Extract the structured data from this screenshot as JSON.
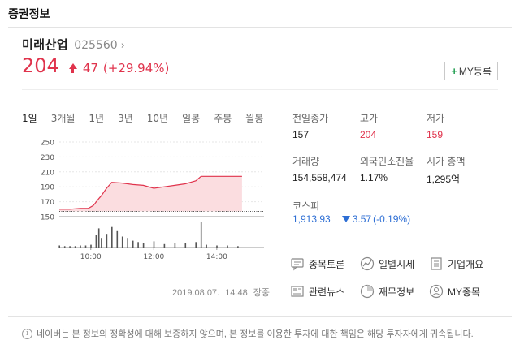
{
  "section_title": "증권정보",
  "stock": {
    "name": "미래산업",
    "code": "025560",
    "price": "204",
    "change": "47",
    "change_rate": "(+29.94%)",
    "my_button_label": "MY등록",
    "colors": {
      "up": "#e0334c",
      "down": "#2d6ed4"
    }
  },
  "tabs": [
    {
      "label": "1일",
      "active": true
    },
    {
      "label": "3개월",
      "active": false
    },
    {
      "label": "1년",
      "active": false
    },
    {
      "label": "3년",
      "active": false
    },
    {
      "label": "10년",
      "active": false
    },
    {
      "label": "일봉",
      "active": false
    },
    {
      "label": "주봉",
      "active": false
    },
    {
      "label": "월봉",
      "active": false
    }
  ],
  "chart_data": {
    "type": "line",
    "title": "",
    "xlabel": "",
    "ylabel": "",
    "ylim": [
      150,
      250
    ],
    "y_ticks": [
      250,
      230,
      210,
      190,
      170,
      150
    ],
    "x_ticks": [
      "10:00",
      "12:00",
      "14:00"
    ],
    "x_range": [
      "09:00",
      "15:30"
    ],
    "reference_price": 157,
    "series": [
      {
        "time": [
          "09:00",
          "09:20",
          "09:40",
          "09:55",
          "10:05",
          "10:15",
          "10:20",
          "10:30",
          "10:40",
          "11:00",
          "11:20",
          "11:40",
          "12:00",
          "12:20",
          "12:40",
          "13:00",
          "13:10",
          "13:20",
          "13:30",
          "13:40",
          "14:00",
          "14:20",
          "14:48"
        ],
        "values": [
          160,
          160,
          161,
          161,
          165,
          174,
          178,
          188,
          196,
          195,
          193,
          192,
          188,
          190,
          192,
          194,
          196,
          198,
          204,
          204,
          204,
          204,
          204
        ]
      }
    ],
    "volume": {
      "time": [
        "09:00",
        "09:10",
        "09:20",
        "09:30",
        "09:40",
        "09:50",
        "10:00",
        "10:10",
        "10:15",
        "10:20",
        "10:30",
        "10:40",
        "10:50",
        "11:00",
        "11:10",
        "11:20",
        "11:30",
        "11:40",
        "12:00",
        "12:20",
        "12:40",
        "13:00",
        "13:20",
        "13:30",
        "13:40",
        "14:00",
        "14:20",
        "14:40"
      ],
      "values": [
        3,
        2,
        2,
        2,
        3,
        3,
        4,
        18,
        28,
        14,
        20,
        30,
        24,
        16,
        14,
        10,
        8,
        6,
        9,
        5,
        7,
        6,
        8,
        38,
        4,
        3,
        3,
        2
      ]
    },
    "grid": true,
    "legend": "none"
  },
  "timestamp": {
    "date": "2019.08.07.",
    "time": "14:48",
    "status": "장중"
  },
  "info": {
    "prev_close": {
      "label": "전일종가",
      "value": "157"
    },
    "high": {
      "label": "고가",
      "value": "204"
    },
    "low": {
      "label": "저가",
      "value": "159"
    },
    "volume": {
      "label": "거래량",
      "value": "154,558,474"
    },
    "foreign_ratio": {
      "label": "외국인소진율",
      "value": "1.17%"
    },
    "market_cap": {
      "label": "시가 총액",
      "value": "1,295억"
    }
  },
  "kospi": {
    "label": "코스피",
    "value": "1,913.93",
    "change": "3.57",
    "change_rate": "(-0.19%)"
  },
  "links": {
    "discussion": {
      "label": "종목토론",
      "icon": "chat-icon"
    },
    "daily": {
      "label": "일별시세",
      "icon": "trend-icon"
    },
    "company": {
      "label": "기업개요",
      "icon": "document-icon"
    },
    "news": {
      "label": "관련뉴스",
      "icon": "news-icon"
    },
    "financial": {
      "label": "재무정보",
      "icon": "pie-icon"
    },
    "my_stocks": {
      "label": "MY종목",
      "icon": "person-icon"
    }
  },
  "disclaimer": "네이버는 본 정보의 정확성에 대해 보증하지 않으며, 본 정보를 이용한 투자에 대한 책임은 해당 투자자에게 귀속됩니다."
}
